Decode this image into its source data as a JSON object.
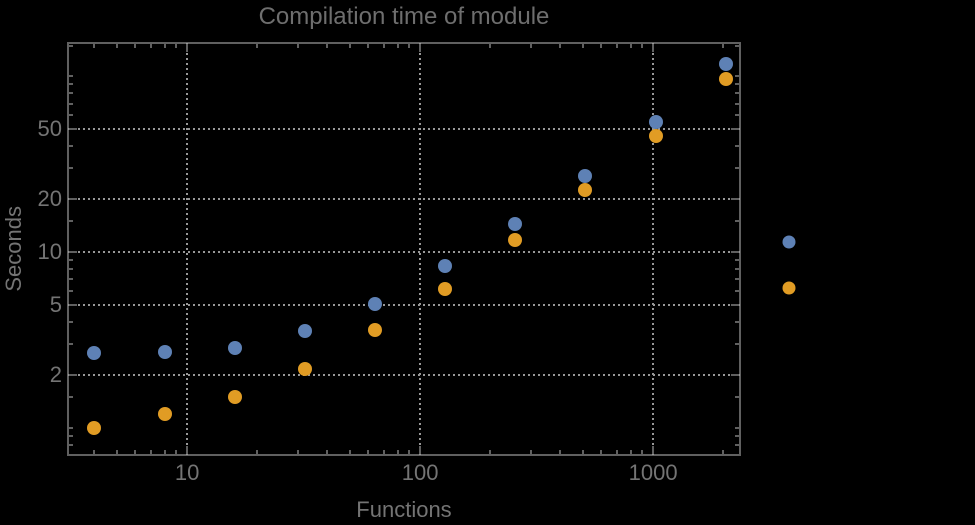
{
  "chart_data": {
    "type": "scatter",
    "title": "Compilation time of module",
    "xlabel": "Functions",
    "ylabel": "Seconds",
    "xscale": "log",
    "yscale": "log",
    "xlim": [
      3.08,
      2360
    ],
    "ylim": [
      0.7,
      155
    ],
    "grid": "dotted, at major ticks only",
    "legend_position": "right-outside, markers only (no visible text)",
    "x": [
      4,
      8,
      16,
      32,
      64,
      128,
      256,
      512,
      1024,
      2048
    ],
    "series": [
      {
        "name": "blue",
        "color": "#5E81B5",
        "values": [
          2.65,
          2.7,
          2.85,
          3.55,
          5.05,
          8.3,
          14.4,
          27,
          55,
          118
        ]
      },
      {
        "name": "orange",
        "color": "#E19C24",
        "values": [
          1.0,
          1.2,
          1.5,
          2.15,
          3.6,
          6.2,
          11.7,
          22.5,
          46,
          97
        ]
      }
    ],
    "x_major_ticks": [
      10,
      100,
      1000
    ],
    "x_tick_labels": [
      "10",
      "100",
      "1000"
    ],
    "y_major_ticks": [
      2,
      5,
      10,
      20,
      50
    ],
    "y_tick_labels": [
      "2",
      "5",
      "10",
      "20",
      "50"
    ],
    "legend": {
      "entries": [
        {
          "name": "blue",
          "color": "#5E81B5"
        },
        {
          "name": "orange",
          "color": "#E19C24"
        }
      ]
    }
  },
  "colors": {
    "background": "#000000",
    "frame": "#606060",
    "gridline": "#989898",
    "title_text": "#6E6E6E",
    "label_text": "#747474",
    "series_blue": "#5E81B5",
    "series_orange": "#E19C24"
  }
}
